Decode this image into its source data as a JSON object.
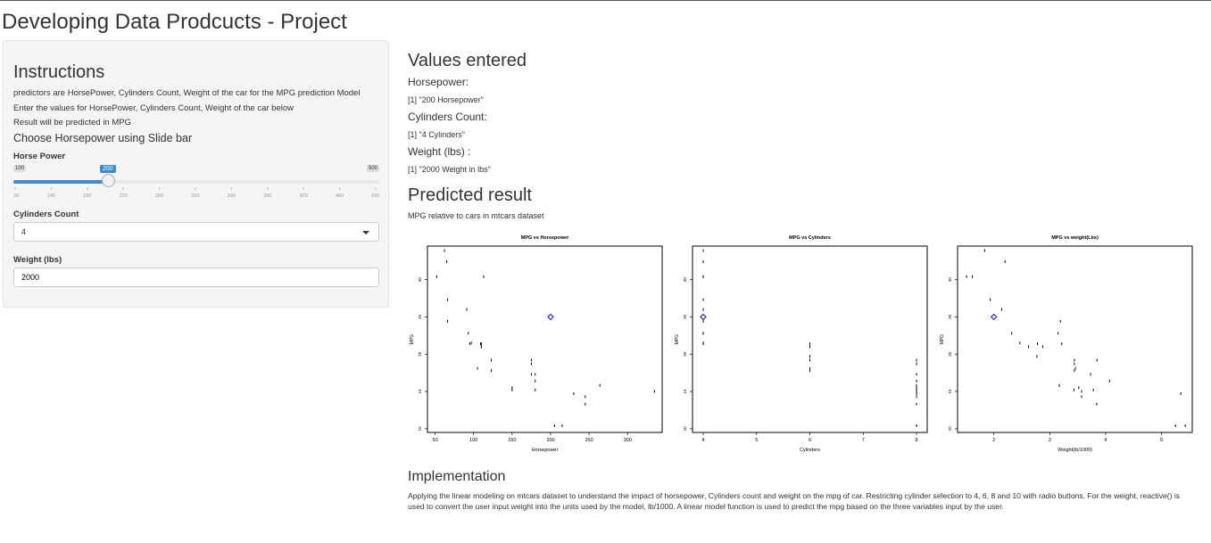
{
  "app_title": "Developing Data Prodcucts - Project",
  "sidebar": {
    "heading": "Instructions",
    "lines": [
      "predictors are HorsePower, Cylinders Count, Weight of the car for the MPG prediction Model",
      "Enter the values for HorsePower, Cylinders Count, Weight of the car below",
      "Result will be predicted in MPG"
    ],
    "slider_heading": "Choose Horsepower using Slide bar",
    "horsepower": {
      "label": "Horse Power",
      "min": 100,
      "max": 500,
      "value": 200,
      "min_label": "100",
      "max_label": "500",
      "value_label": "200",
      "ticks": [
        "100",
        "140",
        "180",
        "220",
        "260",
        "300",
        "340",
        "380",
        "420",
        "460",
        "500"
      ]
    },
    "cylinders": {
      "label": "Cylinders Count",
      "value": "4"
    },
    "weight": {
      "label": "Weight (lbs)",
      "value": "2000"
    }
  },
  "main": {
    "values_heading": "Values entered",
    "hp_label": "Horsepower:",
    "hp_output": "[1] \"200 Horsepower\"",
    "cyl_label": "Cylinders Count:",
    "cyl_output": "[1] \"4 Cylinders\"",
    "wt_label": "Weight (lbs) :",
    "wt_output": "[1] \"2000 Weight in lbs\"",
    "result_heading": "Predicted result",
    "result_caption": "MPG relative to cars in mtcars dataset",
    "impl_heading": "Implementation",
    "impl_text": "Applying the linear modeling on mtcars dataset to understand the impact of horsepower, Cylinders count and weight on the mpg of car. Restricting cylinder selection to 4, 6, 8 and 10 with radio buttons. For the weight, reactive() is used to convert the user input weight into the units used by the model, lb/1000. A linear model function is used to predict the mpg based on the three variables input by the user."
  },
  "colors": {
    "accent": "#428bca",
    "prediction": "#0000cc"
  },
  "chart_data": [
    {
      "type": "scatter",
      "title": "MPG vs Horsepower",
      "xlabel": "Horsepower",
      "ylabel": "MPG",
      "xlim": [
        40,
        345
      ],
      "ylim": [
        9.5,
        34.5
      ],
      "xticks": [
        50,
        100,
        150,
        200,
        250,
        300
      ],
      "yticks": [
        10,
        15,
        20,
        25,
        30
      ],
      "points": [
        [
          52,
          30.4
        ],
        [
          62,
          33.9
        ],
        [
          65,
          32.4
        ],
        [
          66,
          27.3
        ],
        [
          66,
          24.4
        ],
        [
          91,
          26
        ],
        [
          93,
          22.8
        ],
        [
          95,
          21.4
        ],
        [
          97,
          21.5
        ],
        [
          105,
          18.1
        ],
        [
          109,
          21.4
        ],
        [
          110,
          21
        ],
        [
          110,
          21
        ],
        [
          110,
          21.4
        ],
        [
          113,
          30.4
        ],
        [
          123,
          17.8
        ],
        [
          123,
          19.2
        ],
        [
          150,
          15.2
        ],
        [
          150,
          15.5
        ],
        [
          175,
          18.7
        ],
        [
          175,
          19.2
        ],
        [
          175,
          17.3
        ],
        [
          180,
          16.4
        ],
        [
          180,
          17.3
        ],
        [
          180,
          15.2
        ],
        [
          205,
          10.4
        ],
        [
          215,
          10.4
        ],
        [
          230,
          14.7
        ],
        [
          245,
          13.3
        ],
        [
          245,
          14.3
        ],
        [
          264,
          15.8
        ],
        [
          335,
          15
        ]
      ],
      "prediction": [
        200,
        25
      ]
    },
    {
      "type": "scatter",
      "title": "MPG vs Cylinders",
      "xlabel": "Cylinders",
      "ylabel": "MPG",
      "xlim": [
        3.8,
        8.2
      ],
      "ylim": [
        9.5,
        34.5
      ],
      "xticks": [
        4,
        5,
        6,
        7,
        8
      ],
      "yticks": [
        10,
        15,
        20,
        25,
        30
      ],
      "points": [
        [
          4,
          22.8
        ],
        [
          4,
          24.4
        ],
        [
          4,
          22.8
        ],
        [
          4,
          32.4
        ],
        [
          4,
          30.4
        ],
        [
          4,
          33.9
        ],
        [
          4,
          21.5
        ],
        [
          4,
          27.3
        ],
        [
          4,
          26
        ],
        [
          4,
          30.4
        ],
        [
          4,
          21.4
        ],
        [
          6,
          21
        ],
        [
          6,
          21
        ],
        [
          6,
          21.4
        ],
        [
          6,
          18.1
        ],
        [
          6,
          19.2
        ],
        [
          6,
          17.8
        ],
        [
          6,
          19.7
        ],
        [
          8,
          18.7
        ],
        [
          8,
          14.3
        ],
        [
          8,
          16.4
        ],
        [
          8,
          17.3
        ],
        [
          8,
          15.2
        ],
        [
          8,
          10.4
        ],
        [
          8,
          10.4
        ],
        [
          8,
          14.7
        ],
        [
          8,
          15.5
        ],
        [
          8,
          15.2
        ],
        [
          8,
          13.3
        ],
        [
          8,
          19.2
        ],
        [
          8,
          15.8
        ],
        [
          8,
          15
        ]
      ],
      "prediction": [
        4,
        25
      ]
    },
    {
      "type": "scatter",
      "title": "MPG vs weight(Lbs)",
      "xlabel": "Weight(lb/1000)",
      "ylabel": "MPG",
      "xlim": [
        1.35,
        5.55
      ],
      "ylim": [
        9.5,
        34.5
      ],
      "xticks": [
        2,
        3,
        4,
        5
      ],
      "yticks": [
        10,
        15,
        20,
        25,
        30
      ],
      "points": [
        [
          2.62,
          21
        ],
        [
          2.875,
          21
        ],
        [
          2.32,
          22.8
        ],
        [
          3.215,
          21.4
        ],
        [
          3.44,
          18.7
        ],
        [
          3.46,
          18.1
        ],
        [
          3.57,
          14.3
        ],
        [
          3.19,
          24.4
        ],
        [
          3.15,
          22.8
        ],
        [
          3.44,
          19.2
        ],
        [
          3.44,
          17.8
        ],
        [
          4.07,
          16.4
        ],
        [
          3.73,
          17.3
        ],
        [
          3.78,
          15.2
        ],
        [
          5.25,
          10.4
        ],
        [
          5.424,
          10.4
        ],
        [
          5.345,
          14.7
        ],
        [
          2.2,
          32.4
        ],
        [
          1.615,
          30.4
        ],
        [
          1.835,
          33.9
        ],
        [
          2.465,
          21.5
        ],
        [
          3.52,
          15.5
        ],
        [
          3.435,
          15.2
        ],
        [
          3.84,
          13.3
        ],
        [
          3.845,
          19.2
        ],
        [
          1.935,
          27.3
        ],
        [
          2.14,
          26
        ],
        [
          1.513,
          30.4
        ],
        [
          3.17,
          15.8
        ],
        [
          2.77,
          19.7
        ],
        [
          3.57,
          15
        ],
        [
          2.78,
          21.4
        ]
      ],
      "prediction": [
        2,
        25
      ]
    }
  ]
}
